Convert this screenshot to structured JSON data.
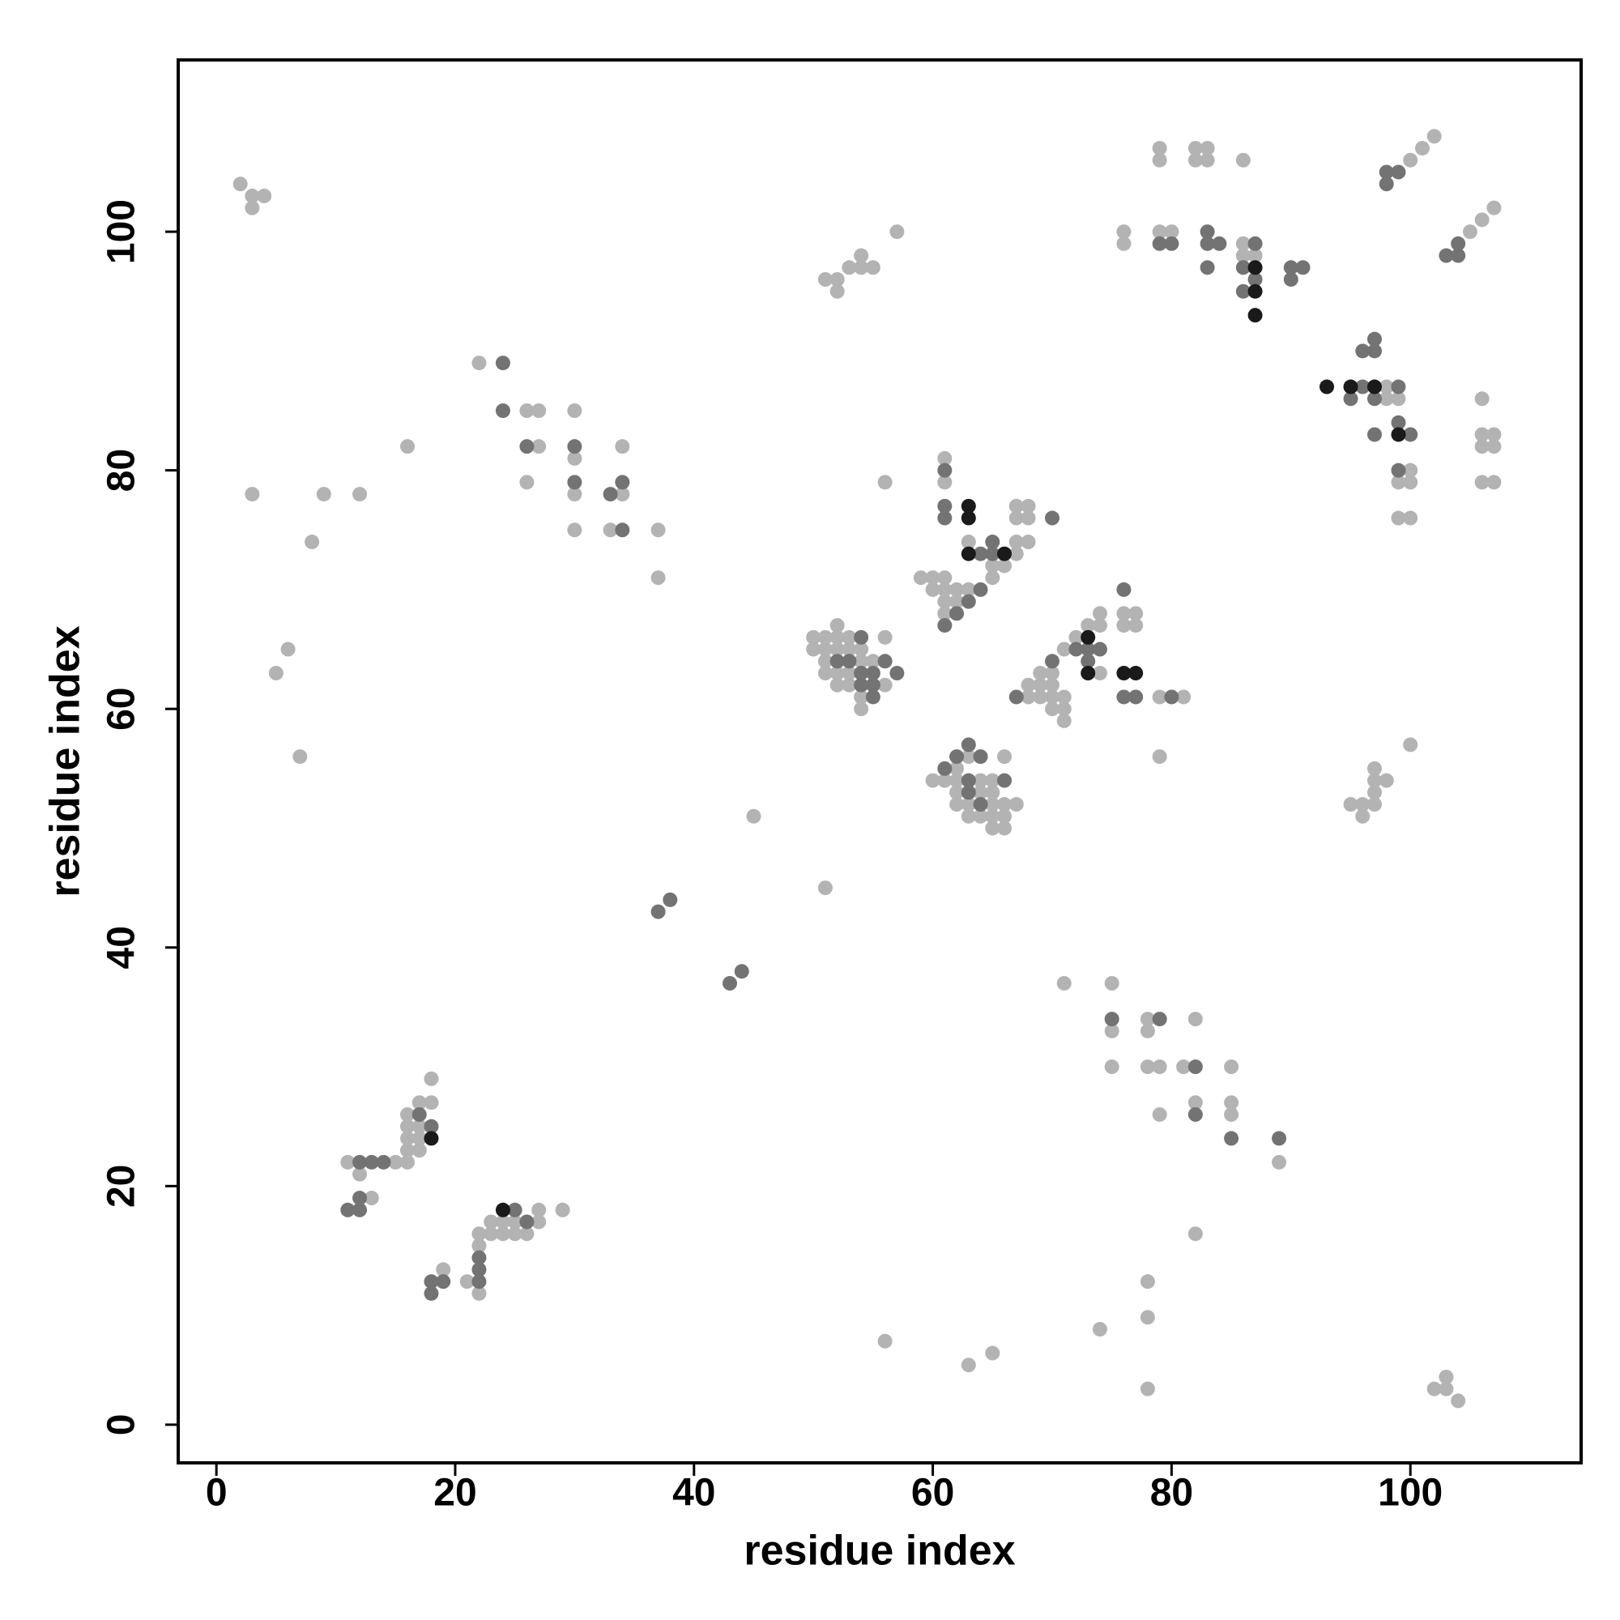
{
  "chart_data": {
    "type": "scatter",
    "xlabel": "residue index",
    "ylabel": "residue index",
    "xlim": [
      -3.2,
      114.3
    ],
    "ylim": [
      -3.2,
      114.4
    ],
    "xticks": [
      0,
      20,
      40,
      60,
      80,
      100
    ],
    "yticks": [
      0,
      20,
      40,
      60,
      80,
      100
    ],
    "series": [
      {
        "color": "#b3b3b3",
        "x": [
          2,
          3,
          4,
          3,
          3,
          8,
          9,
          12,
          16,
          6,
          5,
          7,
          22,
          26,
          27,
          27,
          26,
          30,
          30,
          30,
          30,
          34,
          34,
          33,
          37,
          37,
          45,
          51,
          56,
          57,
          52,
          53,
          52,
          54,
          54,
          55,
          51,
          50,
          51,
          52,
          53,
          50,
          51,
          52,
          53,
          54,
          51,
          54,
          55,
          51,
          52,
          53,
          52,
          53,
          56,
          54,
          54,
          52,
          56,
          61,
          61,
          63,
          65,
          66,
          65,
          59,
          60,
          61,
          60,
          61,
          62,
          63,
          61,
          62,
          61,
          67,
          68,
          67,
          68,
          67,
          68,
          67,
          68,
          69,
          68,
          69,
          70,
          71,
          69,
          70,
          70,
          70,
          71,
          71,
          71,
          72,
          73,
          74,
          74,
          74,
          76,
          77,
          76,
          77,
          79,
          81,
          60,
          61,
          62,
          63,
          62,
          62,
          64,
          65,
          66,
          62,
          63,
          65,
          66,
          67,
          63,
          64,
          65,
          66,
          65,
          66,
          64,
          65,
          79,
          79,
          79,
          82,
          83,
          82,
          83,
          86,
          76,
          76,
          79,
          80,
          86,
          86,
          87,
          100,
          101,
          102,
          105,
          106,
          107,
          98,
          98,
          99,
          100,
          99,
          100,
          99,
          100,
          106,
          106,
          107,
          106,
          107,
          106,
          107,
          100,
          97,
          97,
          98,
          97,
          95,
          96,
          97,
          96,
          71,
          75,
          75,
          78,
          78,
          82,
          75,
          78,
          79,
          81,
          85,
          82,
          85,
          79,
          85,
          89,
          82,
          78,
          78,
          74,
          56,
          63,
          65,
          78,
          102,
          103,
          103,
          104,
          18,
          17,
          18,
          16,
          16,
          17,
          16,
          17,
          16,
          17,
          11,
          15,
          16,
          12,
          13,
          27,
          29,
          23,
          24,
          25,
          27,
          22,
          23,
          24,
          25,
          26,
          22,
          21,
          22,
          19
        ],
        "values": [
          104,
          103,
          103,
          102,
          78,
          74,
          78,
          78,
          82,
          65,
          63,
          56,
          89,
          85,
          85,
          82,
          79,
          85,
          81,
          78,
          75,
          78,
          82,
          75,
          75,
          71,
          51,
          45,
          79,
          100,
          96,
          97,
          95,
          97,
          98,
          97,
          96,
          66,
          66,
          66,
          66,
          65,
          65,
          65,
          65,
          65,
          64,
          64,
          64,
          63,
          63,
          63,
          62,
          62,
          62,
          61,
          60,
          67,
          66,
          81,
          79,
          74,
          72,
          72,
          71,
          71,
          71,
          71,
          70,
          70,
          70,
          70,
          69,
          69,
          68,
          77,
          77,
          76,
          76,
          74,
          74,
          73,
          62,
          62,
          61,
          61,
          61,
          61,
          63,
          63,
          62,
          60,
          60,
          59,
          65,
          66,
          67,
          67,
          68,
          63,
          68,
          68,
          67,
          67,
          61,
          61,
          54,
          54,
          55,
          56,
          54,
          53,
          53,
          53,
          56,
          52,
          52,
          52,
          52,
          52,
          51,
          51,
          51,
          51,
          50,
          50,
          54,
          54,
          56,
          107,
          106,
          107,
          107,
          106,
          106,
          106,
          100,
          99,
          100,
          100,
          99,
          98,
          98,
          106,
          107,
          108,
          100,
          101,
          102,
          87,
          86,
          86,
          80,
          79,
          79,
          76,
          76,
          86,
          83,
          83,
          82,
          82,
          79,
          79,
          57,
          55,
          54,
          54,
          53,
          52,
          52,
          52,
          51,
          37,
          37,
          33,
          34,
          33,
          34,
          30,
          30,
          30,
          30,
          30,
          27,
          27,
          26,
          26,
          22,
          16,
          12,
          9,
          8,
          7,
          5,
          6,
          3,
          3,
          3,
          4,
          2,
          29,
          27,
          27,
          26,
          25,
          25,
          24,
          24,
          23,
          23,
          22,
          22,
          22,
          21,
          19,
          18,
          18,
          17,
          17,
          17,
          17,
          16,
          16,
          16,
          16,
          16,
          15,
          12,
          11,
          13
        ]
      },
      {
        "color": "#737373",
        "x": [
          24,
          24,
          26,
          30,
          30,
          33,
          34,
          34,
          37,
          38,
          43,
          44,
          54,
          52,
          53,
          56,
          54,
          55,
          57,
          54,
          55,
          55,
          61,
          61,
          61,
          64,
          65,
          65,
          64,
          63,
          62,
          61,
          70,
          67,
          70,
          72,
          73,
          74,
          73,
          76,
          76,
          77,
          80,
          61,
          62,
          63,
          64,
          63,
          63,
          66,
          64,
          79,
          80,
          83,
          83,
          84,
          83,
          87,
          86,
          87,
          86,
          90,
          91,
          90,
          98,
          99,
          98,
          103,
          104,
          104,
          96,
          99,
          95,
          97,
          96,
          97,
          97,
          97,
          99,
          100,
          99,
          75,
          79,
          82,
          82,
          85,
          89,
          17,
          18,
          12,
          13,
          14,
          12,
          11,
          12,
          25,
          26,
          22,
          22,
          22,
          18,
          19,
          18
        ],
        "values": [
          89,
          85,
          82,
          82,
          79,
          78,
          79,
          75,
          43,
          44,
          37,
          38,
          66,
          64,
          64,
          64,
          63,
          63,
          63,
          62,
          62,
          61,
          80,
          77,
          76,
          73,
          74,
          73,
          70,
          69,
          68,
          67,
          76,
          61,
          64,
          65,
          65,
          65,
          64,
          70,
          61,
          61,
          61,
          55,
          56,
          57,
          56,
          54,
          53,
          54,
          52,
          99,
          99,
          100,
          99,
          99,
          97,
          99,
          97,
          96,
          95,
          97,
          97,
          96,
          105,
          105,
          104,
          98,
          98,
          99,
          87,
          87,
          86,
          86,
          90,
          90,
          91,
          83,
          84,
          83,
          80,
          34,
          34,
          30,
          26,
          24,
          24,
          26,
          25,
          22,
          22,
          22,
          19,
          18,
          18,
          18,
          17,
          14,
          13,
          12,
          12,
          12,
          11
        ]
      },
      {
        "color": "#1a1a1a",
        "x": [
          63,
          63,
          63,
          66,
          73,
          73,
          76,
          77,
          87,
          87,
          87,
          93,
          95,
          97,
          99,
          18,
          24
        ],
        "values": [
          77,
          76,
          73,
          73,
          66,
          63,
          63,
          63,
          97,
          95,
          93,
          87,
          87,
          87,
          83,
          24,
          18
        ]
      }
    ]
  }
}
